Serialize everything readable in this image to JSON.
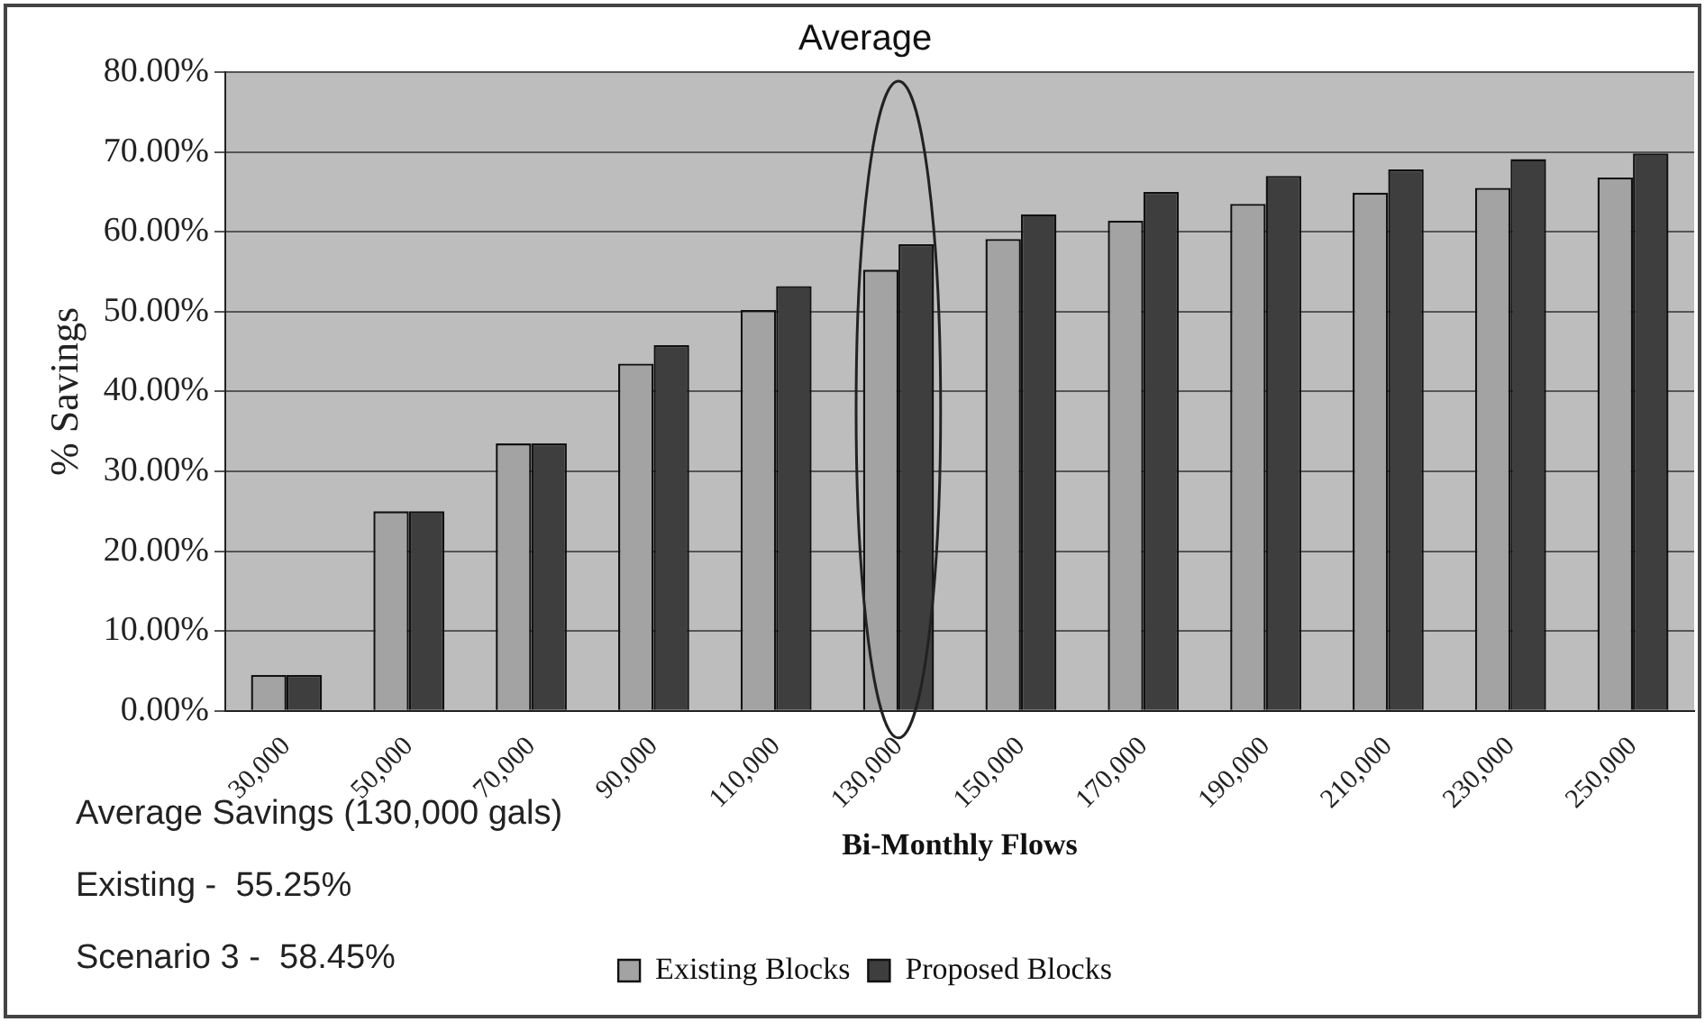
{
  "chart_data": {
    "type": "bar",
    "title": "Average",
    "xlabel": "Bi-Monthly Flows",
    "ylabel": "% Savings",
    "categories": [
      "30,000",
      "50,000",
      "70,000",
      "90,000",
      "110,000",
      "130,000",
      "150,000",
      "170,000",
      "190,000",
      "210,000",
      "230,000",
      "250,000"
    ],
    "series": [
      {
        "name": "Existing Blocks",
        "color": "#a3a3a3",
        "values": [
          4.5,
          25,
          33.5,
          43.5,
          50.2,
          55.25,
          59.1,
          61.4,
          63.5,
          64.9,
          65.5,
          66.8
        ]
      },
      {
        "name": "Proposed Blocks",
        "color": "#3e3e3e",
        "values": [
          4.5,
          25,
          33.5,
          45.8,
          53.2,
          58.45,
          62.2,
          65,
          67,
          67.8,
          69.1,
          69.8
        ]
      }
    ],
    "ylim": [
      0,
      80
    ],
    "yticks": [
      {
        "value": 0,
        "label": "0.00%"
      },
      {
        "value": 10,
        "label": "10.00%"
      },
      {
        "value": 20,
        "label": "20.00%"
      },
      {
        "value": 30,
        "label": "30.00%"
      },
      {
        "value": 40,
        "label": "40.00%"
      },
      {
        "value": 50,
        "label": "50.00%"
      },
      {
        "value": 60,
        "label": "60.00%"
      },
      {
        "value": 70,
        "label": "70.00%"
      },
      {
        "value": 80,
        "label": "80.00%"
      }
    ],
    "grid": "y",
    "legend": "bottom",
    "annotations": [
      "Average Savings (130,000 gals)",
      "Existing -  55.25%",
      "Scenario 3 -  58.45%"
    ]
  }
}
